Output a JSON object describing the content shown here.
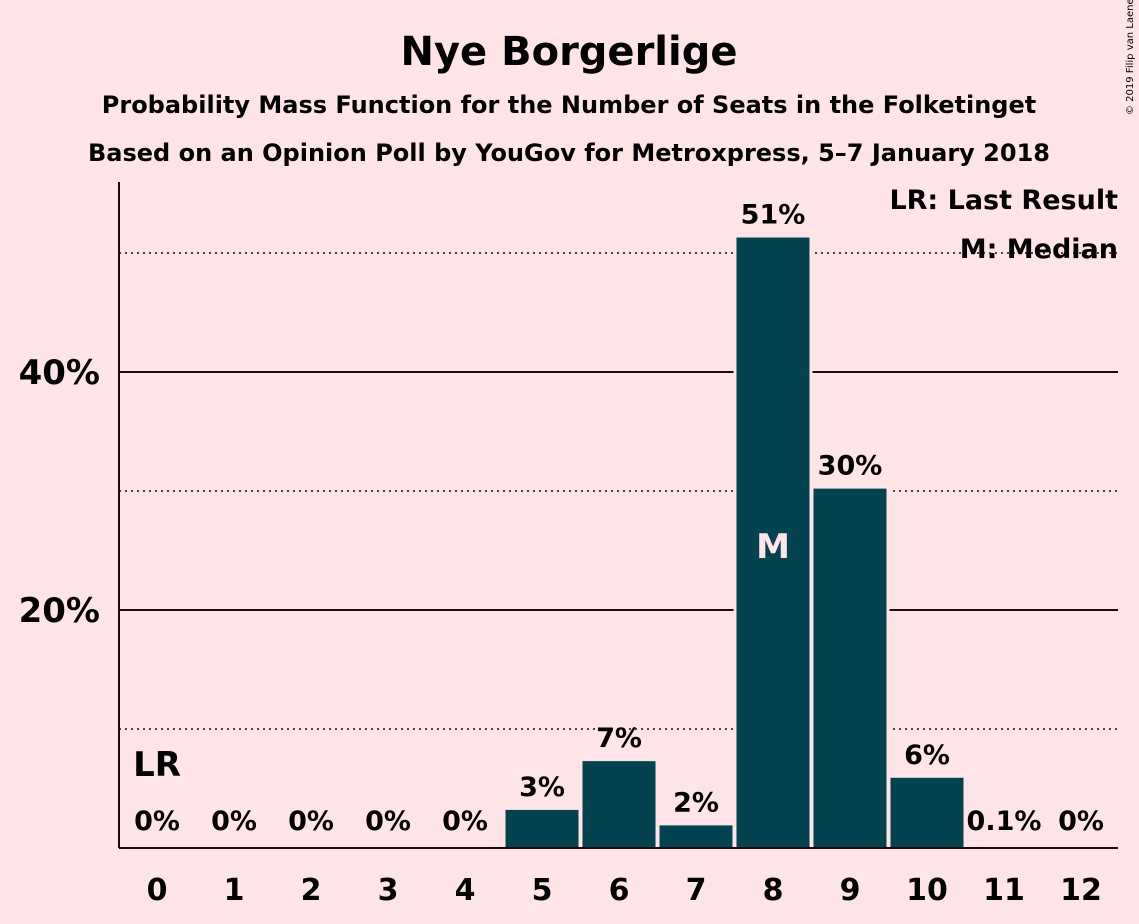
{
  "title": "Nye Borgerlige",
  "subtitle1": "Probability Mass Function for the Number of Seats in the Folketinget",
  "subtitle2": "Based on an Opinion Poll by YouGov for Metroxpress, 5–7 January 2018",
  "copyright": "© 2019 Filip van Laenen",
  "legend": {
    "last_result": "LR: Last Result",
    "median": "M: Median"
  },
  "colors": {
    "background": "#ffe4e8",
    "bar": "#03434f",
    "text": "#1a0a0f"
  },
  "chart_data": {
    "type": "bar",
    "categories": [
      "0",
      "1",
      "2",
      "3",
      "4",
      "5",
      "6",
      "7",
      "8",
      "9",
      "10",
      "11",
      "12"
    ],
    "values": [
      0,
      0,
      0,
      0,
      0,
      3.2,
      7.3,
      1.9,
      51.3,
      30.2,
      5.9,
      0.1,
      0
    ],
    "labels": [
      "0%",
      "0%",
      "0%",
      "0%",
      "0%",
      "3%",
      "7%",
      "2%",
      "51%",
      "30%",
      "6%",
      "0.1%",
      "0%"
    ],
    "ylim": [
      0,
      56
    ],
    "yticks_major": [
      20,
      40
    ],
    "ytick_labels": [
      "20%",
      "40%"
    ],
    "yticks_minor": [
      10,
      30,
      50
    ],
    "last_result_seat": "0",
    "last_result_marker": "LR",
    "median_seat": "8",
    "median_marker": "M",
    "legend_position": "top-right"
  }
}
